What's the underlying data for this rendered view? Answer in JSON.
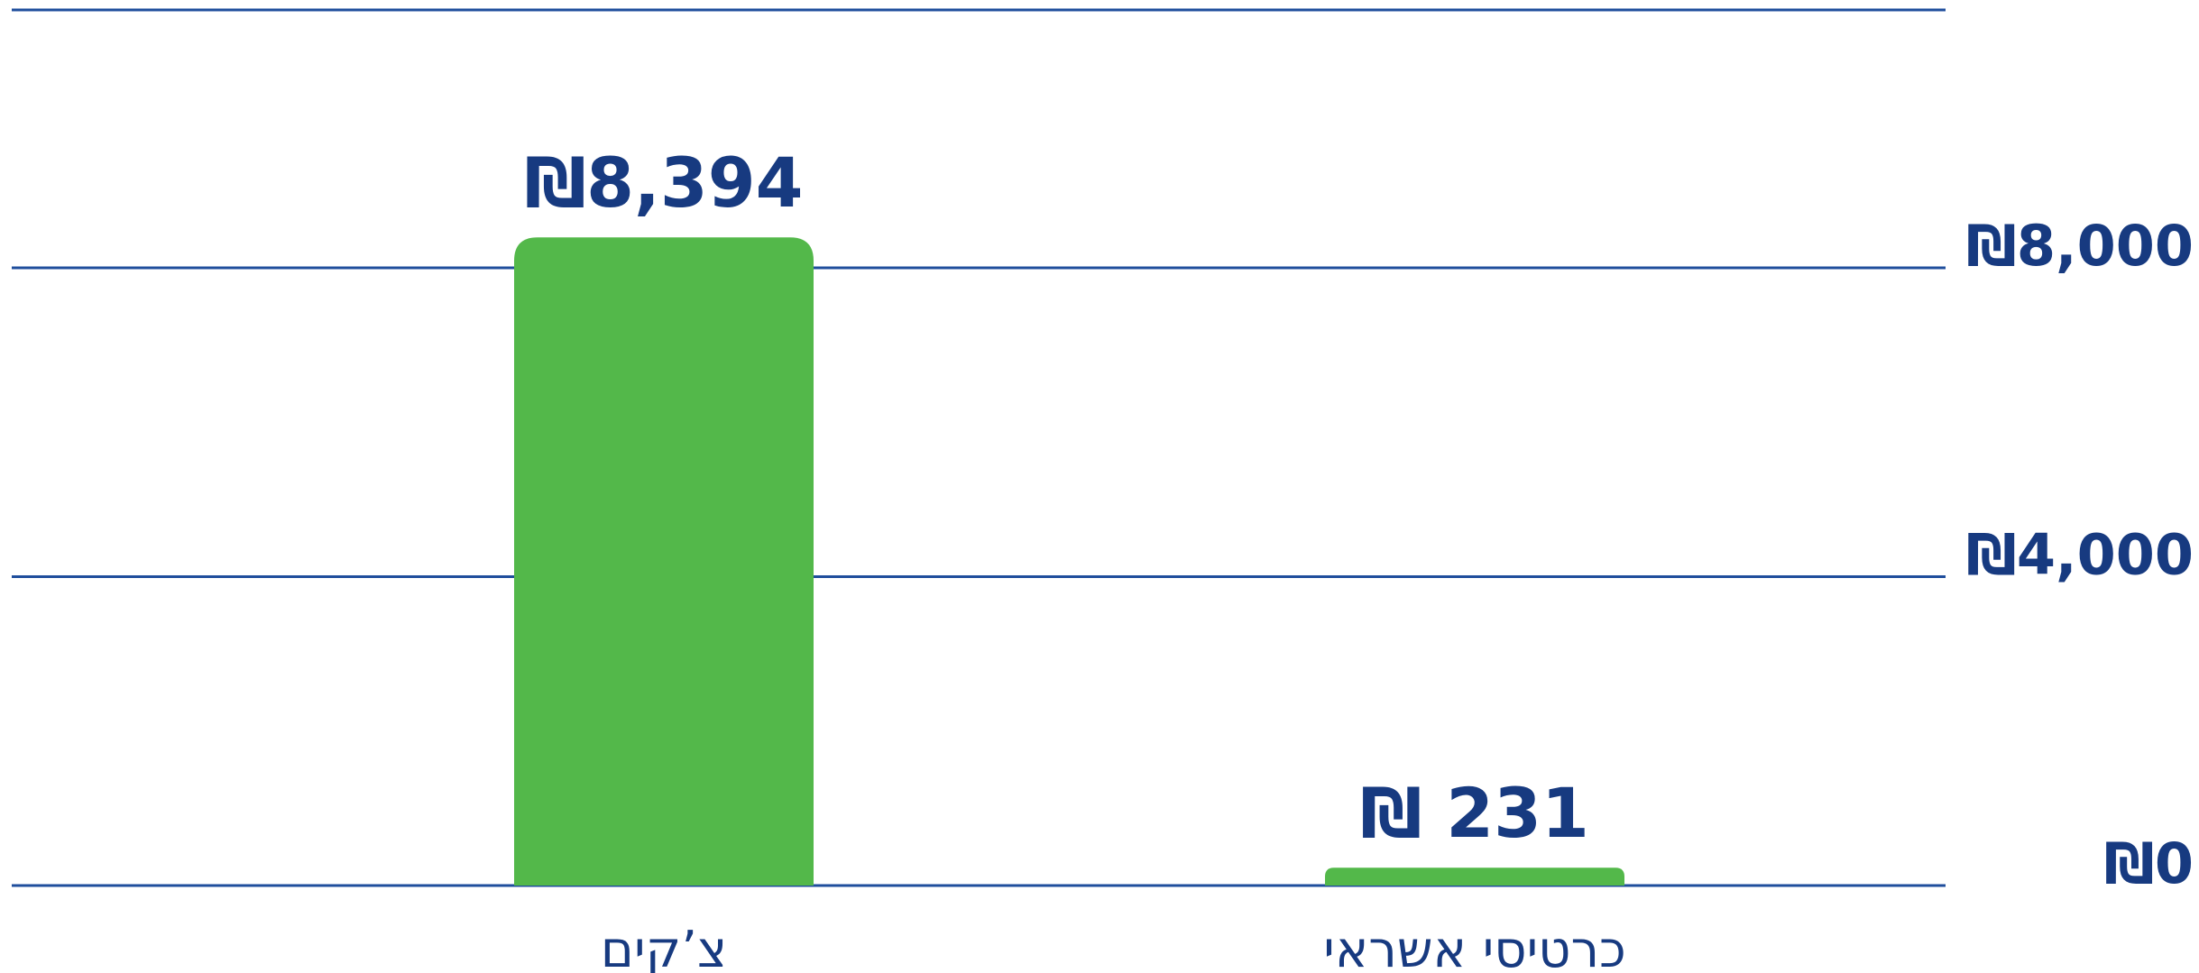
{
  "chart_data": {
    "type": "bar",
    "categories": [
      "צ’קים",
      "כרטיסי אשראי"
    ],
    "values": [
      8394,
      231
    ],
    "value_labels": [
      "₪8,394",
      "₪ 231"
    ],
    "color": "#53b84a",
    "ylim": [
      0,
      11340
    ],
    "yticks": [
      {
        "value": 0,
        "label": "₪0"
      },
      {
        "value": 4000,
        "label": "₪4,000"
      },
      {
        "value": 8000,
        "label": "₪8,000"
      }
    ],
    "grid": true
  }
}
